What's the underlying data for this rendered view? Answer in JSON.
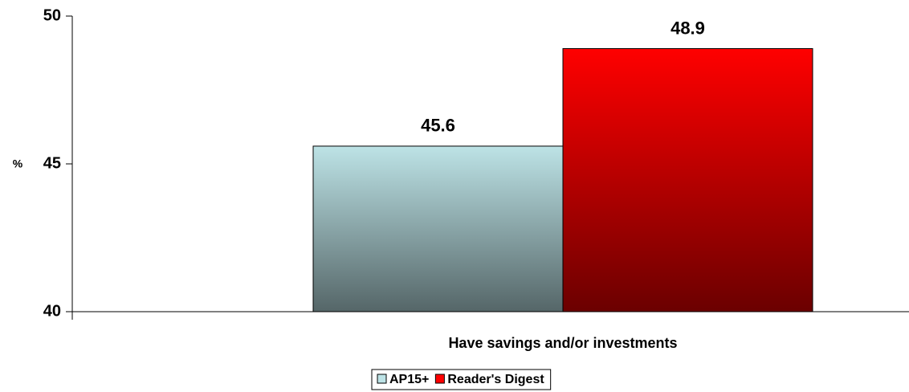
{
  "chart_data": {
    "type": "bar",
    "y_label": "%",
    "categories": [
      "Have savings and/or investments"
    ],
    "series": [
      {
        "name": "AP15+",
        "color": "#bde3e6",
        "values": [
          45.6
        ]
      },
      {
        "name": "Reader's Digest",
        "color": "#ff0000",
        "values": [
          48.9
        ]
      }
    ],
    "ylim": [
      40,
      50
    ],
    "yticks": [
      40,
      45,
      50
    ],
    "legend": "bottom"
  }
}
